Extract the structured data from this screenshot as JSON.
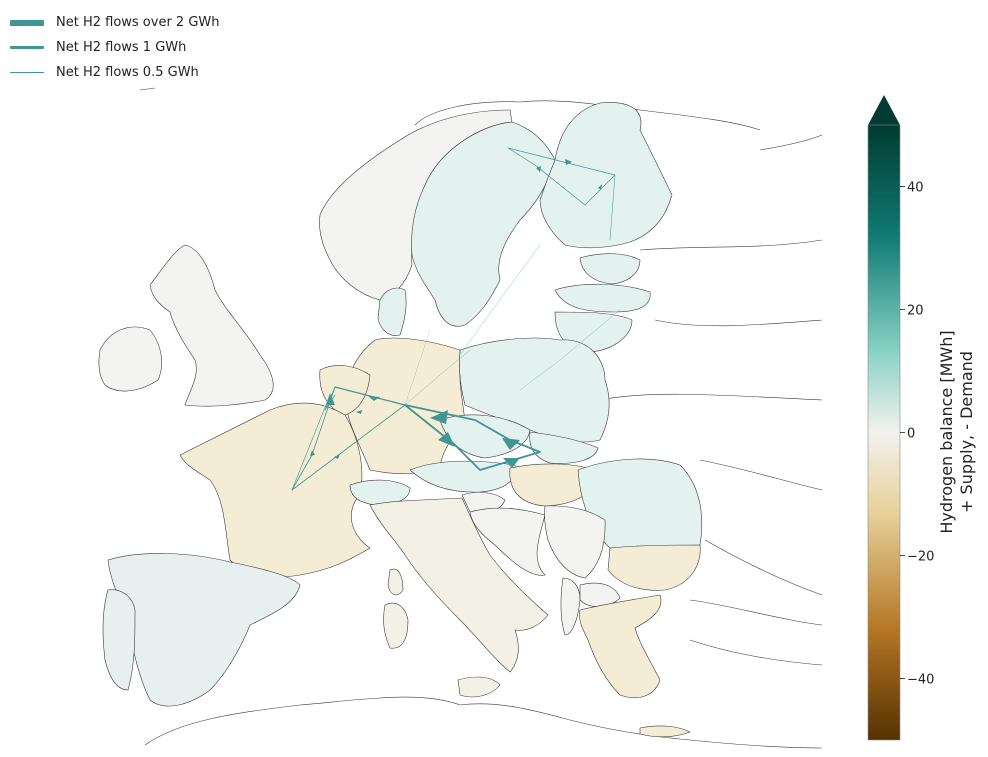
{
  "legend": {
    "items": [
      {
        "label": "Net H2 flows over 2 GWh"
      },
      {
        "label": "Net H2 flows 1 GWh"
      },
      {
        "label": "Net H2 flows 0.5 GWh"
      }
    ]
  },
  "colorbar": {
    "label_line1": "Hydrogen balance [MWh]",
    "label_line2": "+ Supply, - Demand",
    "ticks": [
      {
        "value": 40,
        "label": "40"
      },
      {
        "value": 20,
        "label": "20"
      },
      {
        "value": 0,
        "label": "0"
      },
      {
        "value": -20,
        "label": "−20"
      },
      {
        "value": -40,
        "label": "−40"
      }
    ],
    "range": [
      -50,
      50
    ],
    "extend": "max",
    "colors": {
      "top": "#013b31",
      "upper": "#0f7a73",
      "mid_high": "#8ad3c6",
      "center": "#f3f1ee",
      "mid_low": "#e7d29a",
      "lower": "#b57625",
      "bottom": "#553201"
    }
  },
  "map": {
    "flow_color": "#3f9693",
    "region_colors": {
      "teal_light": "#e3f1ef",
      "neutral": "#f3f3f2",
      "beige": "#f5ecd6",
      "beige_light": "#f3f1e6"
    }
  }
}
